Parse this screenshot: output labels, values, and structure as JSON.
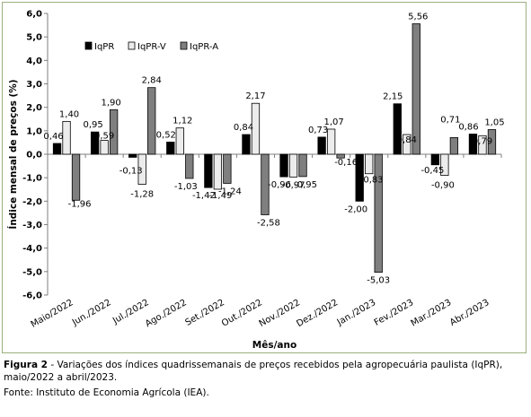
{
  "chart_data": {
    "type": "bar",
    "ylabel": "Índice mensal de preços (%)",
    "xlabel": "Mês/ano",
    "ylim": [
      -6,
      6
    ],
    "yticks": [
      "6,0",
      "5,0",
      "4,0",
      "3,0",
      "2,0",
      "1,0",
      "0,0",
      "-1,0",
      "-2,0",
      "-3,0",
      "-4,0",
      "-5,0",
      "-6,0"
    ],
    "grid": false,
    "legend_position": "top-left",
    "categories": [
      "Maio/2022",
      "Jun./2022",
      "Jul./2022",
      "Ago./2022",
      "Set./2022",
      "Out./2022",
      "Nov./2022",
      "Dez./2022",
      "Jan./2023",
      "Fev./2023",
      "Mar./2023",
      "Abr./2023"
    ],
    "series": [
      {
        "name": "IqPR",
        "color": "#000000",
        "values": [
          0.46,
          0.95,
          -0.13,
          0.52,
          -1.42,
          0.84,
          -0.96,
          0.73,
          -2.0,
          2.15,
          -0.45,
          0.86
        ],
        "labels": [
          "0,46",
          "0,95",
          "-0,13",
          "0,52",
          "-1,42",
          "0,84",
          "-0,96",
          "0,73",
          "-2,00",
          "2,15",
          "-0,45",
          "0,86"
        ]
      },
      {
        "name": "IqPR-V",
        "color": "#ececec",
        "values": [
          1.4,
          0.59,
          -1.28,
          1.12,
          -1.49,
          2.17,
          -0.97,
          1.07,
          -0.83,
          0.84,
          -0.9,
          0.79
        ],
        "labels": [
          "1,40",
          "0,59",
          "-1,28",
          "1,12",
          "-1,49",
          "2,17",
          "-0,97",
          "1,07",
          "-0,83",
          "0,84",
          "-0,90",
          "0,79"
        ]
      },
      {
        "name": "IqPR-A",
        "color": "#7f7f7f",
        "values": [
          -1.96,
          1.9,
          2.84,
          -1.03,
          -1.24,
          -2.58,
          -0.95,
          -0.16,
          -5.03,
          5.56,
          0.71,
          1.05
        ],
        "labels": [
          "-1,96",
          "1,90",
          "2,84",
          "-1,03",
          "-1,24",
          "-2,58",
          "-0,95",
          "-0,16",
          "-5,03",
          "5,56",
          "0,71",
          "1,05"
        ]
      }
    ]
  },
  "caption": {
    "label": "Figura 2",
    "text": " - Variações dos índices quadrissemanais de preços recebidos pela agropecuária paulista (IqPR), maio/2022 a abril/2023."
  },
  "source": "Fonte: Instituto de Economia Agrícola (IEA)."
}
